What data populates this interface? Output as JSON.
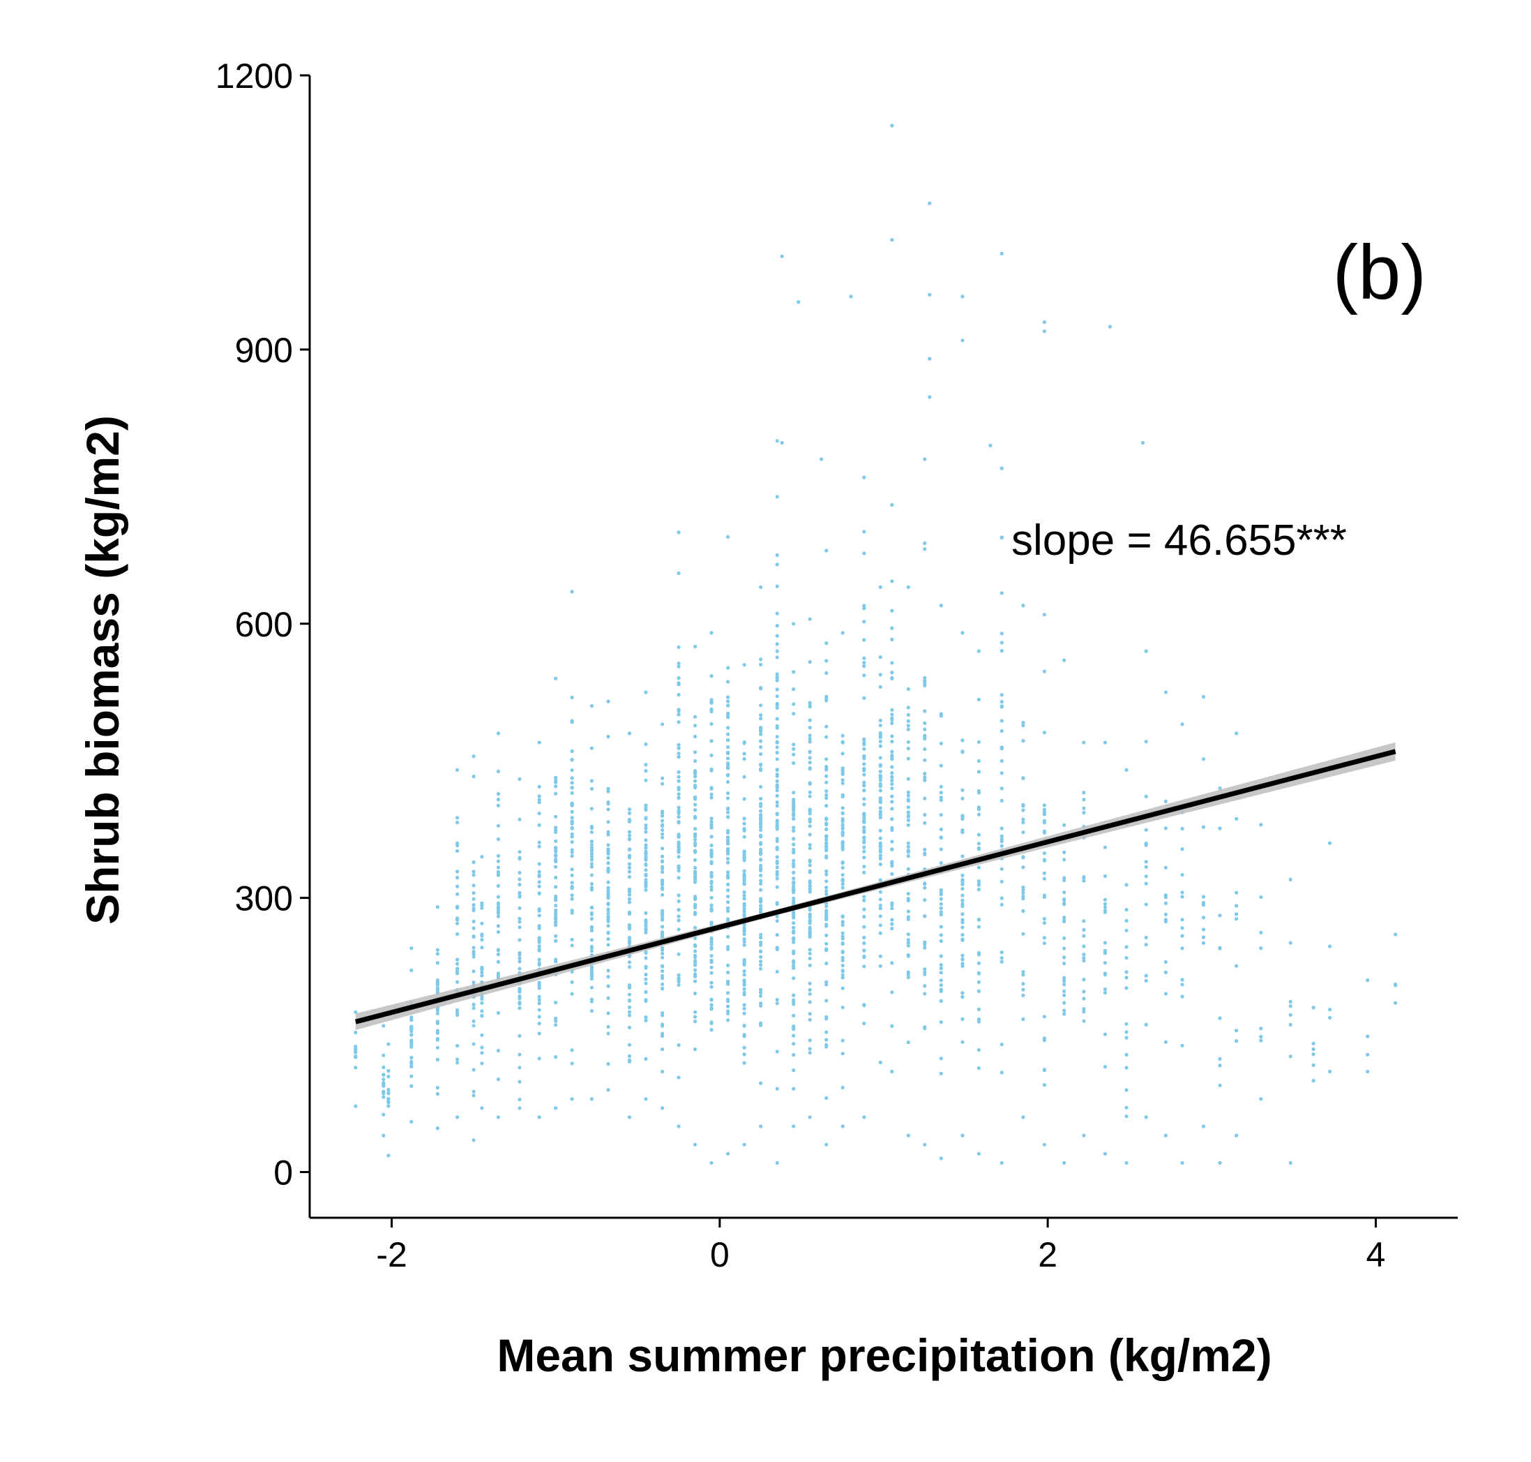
{
  "chart_data": {
    "type": "scatter",
    "panel_label": "(b)",
    "xlabel": "Mean summer precipitation (kg/m2)",
    "ylabel": "Shrub biomass (kg/m2)",
    "xlim": [
      -2.5,
      4.5
    ],
    "ylim": [
      -50,
      1200
    ],
    "x_ticks": [
      -2,
      0,
      2,
      4
    ],
    "x_tick_labels": [
      "-2",
      "0",
      "2",
      "4"
    ],
    "y_ticks": [
      0,
      300,
      600,
      900,
      1200
    ],
    "y_tick_labels": [
      "0",
      "300",
      "600",
      "900",
      "1200"
    ],
    "grid": false,
    "legend": "none",
    "annotation": "slope =  46.655***",
    "point_color": "#7EC8E8",
    "line_color": "#000000",
    "band_color": "#bdbdbd",
    "fit": {
      "slope": 46.655,
      "intercept": 268,
      "x_range": [
        -2.22,
        4.12
      ]
    },
    "columns": [
      {
        "x": -2.22,
        "lo": 72,
        "hi": 175,
        "n": 10
      },
      {
        "x": -2.05,
        "lo": 40,
        "hi": 160,
        "n": 14
      },
      {
        "x": -2.02,
        "lo": 18,
        "hi": 140,
        "n": 10
      },
      {
        "x": -1.88,
        "lo": 55,
        "hi": 245,
        "n": 26
      },
      {
        "x": -1.72,
        "lo": 48,
        "hi": 290,
        "n": 28
      },
      {
        "x": -1.6,
        "lo": 60,
        "hi": 440,
        "n": 34
      },
      {
        "x": -1.5,
        "lo": 35,
        "hi": 455,
        "n": 34
      },
      {
        "x": -1.45,
        "lo": 70,
        "hi": 345,
        "n": 30
      },
      {
        "x": -1.35,
        "lo": 60,
        "hi": 480,
        "n": 40
      },
      {
        "x": -1.22,
        "lo": 70,
        "hi": 430,
        "n": 42
      },
      {
        "x": -1.1,
        "lo": 60,
        "hi": 470,
        "n": 46
      },
      {
        "x": -1.0,
        "lo": 70,
        "hi": 540,
        "n": 48
      },
      {
        "x": -0.9,
        "lo": 80,
        "hi": 635,
        "n": 50
      },
      {
        "x": -0.78,
        "lo": 80,
        "hi": 510,
        "n": 54
      },
      {
        "x": -0.68,
        "lo": 90,
        "hi": 515,
        "n": 58
      },
      {
        "x": -0.55,
        "lo": 60,
        "hi": 480,
        "n": 60
      },
      {
        "x": -0.45,
        "lo": 80,
        "hi": 525,
        "n": 62
      },
      {
        "x": -0.35,
        "lo": 70,
        "hi": 490,
        "n": 64
      },
      {
        "x": -0.25,
        "lo": 50,
        "hi": 700,
        "n": 68
      },
      {
        "x": -0.15,
        "lo": 30,
        "hi": 575,
        "n": 70
      },
      {
        "x": -0.05,
        "lo": 10,
        "hi": 590,
        "n": 74
      },
      {
        "x": 0.05,
        "lo": 20,
        "hi": 695,
        "n": 76
      },
      {
        "x": 0.15,
        "lo": 30,
        "hi": 555,
        "n": 78
      },
      {
        "x": 0.25,
        "lo": 50,
        "hi": 640,
        "n": 80
      },
      {
        "x": 0.35,
        "lo": 10,
        "hi": 800,
        "n": 80
      },
      {
        "x": 0.45,
        "lo": 50,
        "hi": 600,
        "n": 80
      },
      {
        "x": 0.55,
        "lo": 60,
        "hi": 605,
        "n": 78
      },
      {
        "x": 0.65,
        "lo": 30,
        "hi": 680,
        "n": 76
      },
      {
        "x": 0.75,
        "lo": 50,
        "hi": 590,
        "n": 72
      },
      {
        "x": 0.88,
        "lo": 60,
        "hi": 760,
        "n": 68
      },
      {
        "x": 0.98,
        "lo": 120,
        "hi": 640,
        "n": 56
      },
      {
        "x": 1.05,
        "lo": 110,
        "hi": 730,
        "n": 50
      },
      {
        "x": 1.15,
        "lo": 40,
        "hi": 640,
        "n": 46
      },
      {
        "x": 1.25,
        "lo": 30,
        "hi": 780,
        "n": 44
      },
      {
        "x": 1.35,
        "lo": 15,
        "hi": 620,
        "n": 40
      },
      {
        "x": 1.48,
        "lo": 40,
        "hi": 590,
        "n": 38
      },
      {
        "x": 1.58,
        "lo": 20,
        "hi": 570,
        "n": 34
      },
      {
        "x": 1.72,
        "lo": 10,
        "hi": 770,
        "n": 34
      },
      {
        "x": 1.85,
        "lo": 60,
        "hi": 620,
        "n": 30
      },
      {
        "x": 1.98,
        "lo": 30,
        "hi": 610,
        "n": 28
      },
      {
        "x": 2.1,
        "lo": 10,
        "hi": 560,
        "n": 26
      },
      {
        "x": 2.22,
        "lo": 40,
        "hi": 470,
        "n": 22
      },
      {
        "x": 2.35,
        "lo": 20,
        "hi": 470,
        "n": 20
      },
      {
        "x": 2.48,
        "lo": 10,
        "hi": 440,
        "n": 18
      },
      {
        "x": 2.6,
        "lo": 60,
        "hi": 570,
        "n": 16
      },
      {
        "x": 2.72,
        "lo": 40,
        "hi": 525,
        "n": 14
      },
      {
        "x": 2.82,
        "lo": 10,
        "hi": 490,
        "n": 14
      },
      {
        "x": 2.95,
        "lo": 50,
        "hi": 520,
        "n": 10
      },
      {
        "x": 3.05,
        "lo": 10,
        "hi": 420,
        "n": 8
      },
      {
        "x": 3.15,
        "lo": 40,
        "hi": 480,
        "n": 8
      },
      {
        "x": 3.3,
        "lo": 80,
        "hi": 380,
        "n": 6
      },
      {
        "x": 3.48,
        "lo": 10,
        "hi": 320,
        "n": 6
      },
      {
        "x": 3.62,
        "lo": 100,
        "hi": 180,
        "n": 4
      },
      {
        "x": 3.72,
        "lo": 110,
        "hi": 360,
        "n": 3
      },
      {
        "x": 3.95,
        "lo": 110,
        "hi": 210,
        "n": 2
      },
      {
        "x": 4.12,
        "lo": 185,
        "hi": 260,
        "n": 2
      }
    ],
    "outliers": [
      {
        "x": 1.05,
        "y": 1145
      },
      {
        "x": 1.05,
        "y": 1020
      },
      {
        "x": 1.28,
        "y": 1060
      },
      {
        "x": 0.38,
        "y": 1002
      },
      {
        "x": 1.72,
        "y": 1005
      },
      {
        "x": 0.48,
        "y": 952
      },
      {
        "x": 1.28,
        "y": 960
      },
      {
        "x": 1.48,
        "y": 958
      },
      {
        "x": 0.8,
        "y": 958
      },
      {
        "x": 1.98,
        "y": 930
      },
      {
        "x": 1.98,
        "y": 920
      },
      {
        "x": 2.38,
        "y": 925
      },
      {
        "x": 1.48,
        "y": 910
      },
      {
        "x": 1.28,
        "y": 890
      },
      {
        "x": 1.28,
        "y": 848
      },
      {
        "x": 0.38,
        "y": 798
      },
      {
        "x": 1.65,
        "y": 795
      },
      {
        "x": 2.58,
        "y": 798
      },
      {
        "x": 0.62,
        "y": 780
      }
    ]
  }
}
